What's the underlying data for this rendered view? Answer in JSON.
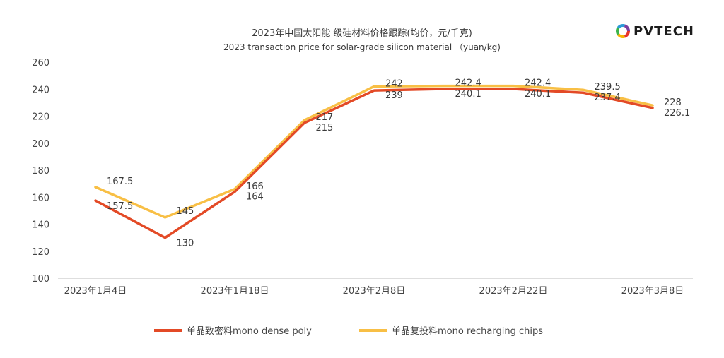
{
  "logo": {
    "text": "PVTECH",
    "colors": [
      "#e8352b",
      "#f6b400",
      "#2b9bd8",
      "#7b3fa0",
      "#3cb44b"
    ]
  },
  "chart_data": {
    "type": "line",
    "title": "2023年中国太阳能 级硅材料价格跟踪(均价，元/千克)",
    "subtitle": "2023 transaction price for solar-grade silicon material （yuan/kg)",
    "xlabel": "",
    "ylabel": "",
    "ylim": [
      100,
      260
    ],
    "yticks": [
      100,
      120,
      140,
      160,
      180,
      200,
      220,
      240,
      260
    ],
    "x_tick_labels": [
      "2023年1月4日",
      "2023年1月18日",
      "2023年2月8日",
      "2023年2月22日",
      "2023年3月8日"
    ],
    "x": [
      "2023-01-04",
      "2023-01-11",
      "2023-01-18",
      "2023-02-01",
      "2023-02-08",
      "2023-02-15",
      "2023-02-22",
      "2023-03-01",
      "2023-03-08"
    ],
    "grid": false,
    "legend_position": "bottom",
    "series": [
      {
        "name": "单晶致密料mono dense poly",
        "color": "#e34a26",
        "values": [
          157.5,
          130,
          164,
          215,
          239,
          240.1,
          240.1,
          237.4,
          226.1
        ],
        "labels": [
          "157.5",
          "130",
          "164",
          "215",
          "239",
          "240.1",
          "240.1",
          "237.4",
          "226.1"
        ]
      },
      {
        "name": "单晶复投料mono recharging chips",
        "color": "#f8bf45",
        "values": [
          167.5,
          145,
          166,
          217,
          242,
          242.4,
          242.4,
          239.5,
          228
        ],
        "labels": [
          "167.5",
          "145",
          "166",
          "217",
          "242",
          "242.4",
          "242.4",
          "239.5",
          "228"
        ]
      }
    ]
  }
}
